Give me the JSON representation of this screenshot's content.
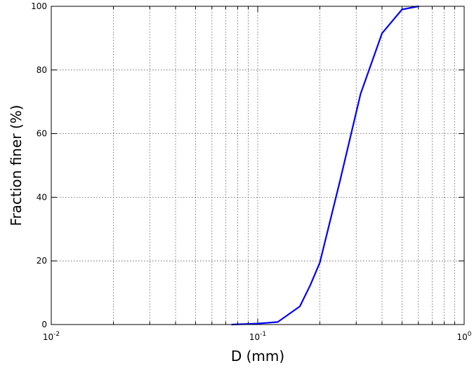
{
  "chart_data": {
    "type": "line",
    "title": "",
    "xlabel": "D (mm)",
    "ylabel": "Fraction finer (%)",
    "xscale": "log",
    "xlim": [
      0.01,
      1
    ],
    "ylim": [
      0,
      100
    ],
    "grid": true,
    "grid_x": "major-and-minor",
    "grid_y": "major",
    "line_color": "#0000ff",
    "x_tick_labels": [
      {
        "value": 0.01,
        "base": "10",
        "exp": "-2"
      },
      {
        "value": 0.1,
        "base": "10",
        "exp": "-1"
      },
      {
        "value": 1,
        "base": "10",
        "exp": "0"
      }
    ],
    "y_tick_labels": [
      "0",
      "20",
      "40",
      "60",
      "80",
      "100"
    ],
    "series": [
      {
        "x": [
          0.075,
          0.1,
          0.125,
          0.16,
          0.18,
          0.2,
          0.25,
          0.315,
          0.4,
          0.5,
          0.6
        ],
        "y": [
          0,
          0.3,
          0.8,
          5.7,
          12.5,
          19.5,
          45,
          72.5,
          91.5,
          99,
          100
        ]
      }
    ]
  }
}
